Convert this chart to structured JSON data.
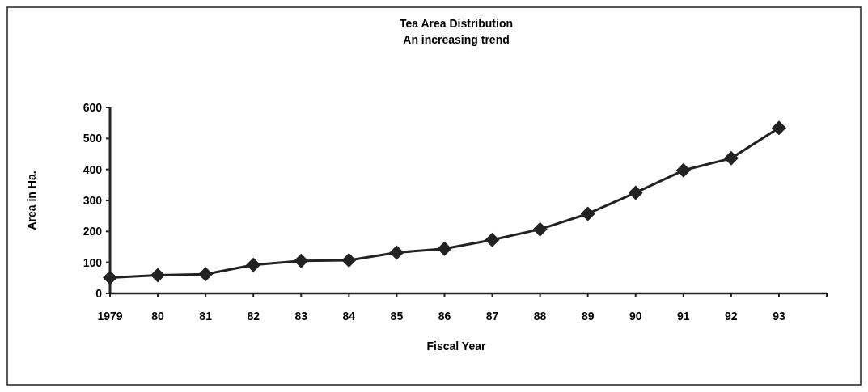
{
  "chart_data": {
    "type": "line",
    "title": "Tea Area Distribution",
    "subtitle": "An increasing trend",
    "xlabel": "Fiscal Year",
    "ylabel": "Area in Ha.",
    "categories": [
      "1979",
      "80",
      "81",
      "82",
      "83",
      "84",
      "85",
      "86",
      "87",
      "88",
      "89",
      "90",
      "91",
      "92",
      "93",
      null
    ],
    "series": [
      {
        "color": "#222222",
        "values": [
          51,
          59,
          62,
          92,
          105,
          107,
          132,
          144,
          173,
          207,
          257,
          325,
          397,
          436,
          534,
          null
        ]
      }
    ],
    "ylim": [
      0,
      600
    ],
    "yticks": [
      0,
      100,
      200,
      300,
      400,
      500,
      600
    ],
    "grid": false,
    "marker": "diamond",
    "line_style": "solid"
  }
}
